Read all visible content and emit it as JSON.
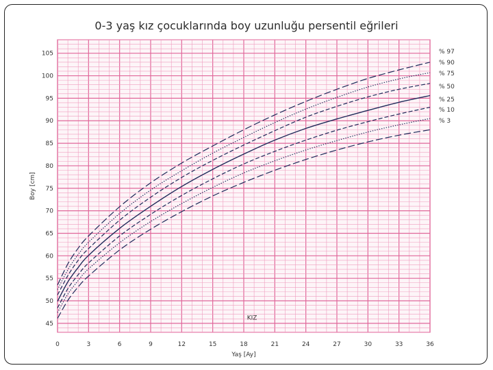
{
  "title": "0-3 yaş kız çocuklarında boy uzunluğu persentil eğrileri",
  "colors": {
    "grid": "#e0679a",
    "grid_minor": "#ef9cbe",
    "line": "#1f2a5a"
  },
  "chart_data": {
    "type": "line",
    "title": "0-3 yaş kız çocuklarında boy uzunluğu persentil eğrileri",
    "xlabel": "Yaş [Ay]",
    "ylabel": "Boy [cm]",
    "annotation": "KIZ",
    "xlim": [
      0,
      36
    ],
    "ylim": [
      43,
      108
    ],
    "xticks": [
      "0",
      "3",
      "6",
      "9",
      "12",
      "15",
      "18",
      "21",
      "24",
      "27",
      "30",
      "33",
      "36"
    ],
    "yticks": [
      "45",
      "50",
      "55",
      "60",
      "65",
      "70",
      "75",
      "80",
      "85",
      "90",
      "95",
      "100",
      "105"
    ],
    "grid": true,
    "x": [
      0,
      1,
      2,
      3,
      6,
      9,
      12,
      15,
      18,
      21,
      24,
      27,
      30,
      33,
      36
    ],
    "series": [
      {
        "name": "% 97",
        "style": "longdash",
        "values": [
          53.5,
          58.2,
          61.7,
          64.4,
          70.9,
          76.2,
          80.6,
          84.4,
          88.0,
          91.3,
          94.3,
          97.0,
          99.4,
          101.3,
          103.0
        ]
      },
      {
        "name": "% 90",
        "style": "dotted",
        "values": [
          52.5,
          56.9,
          60.3,
          63.0,
          69.4,
          74.6,
          78.9,
          82.8,
          86.3,
          89.6,
          92.6,
          95.2,
          97.5,
          99.3,
          100.7
        ]
      },
      {
        "name": "% 75",
        "style": "dashed",
        "values": [
          51.3,
          55.6,
          59.0,
          61.6,
          67.9,
          73.0,
          77.4,
          81.2,
          84.6,
          87.8,
          90.8,
          93.2,
          95.3,
          97.0,
          98.3
        ]
      },
      {
        "name": "% 50",
        "style": "solid",
        "values": [
          49.9,
          54.2,
          57.4,
          60.1,
          66.1,
          71.0,
          75.4,
          79.2,
          82.6,
          85.7,
          88.3,
          90.4,
          92.3,
          94.1,
          95.6
        ]
      },
      {
        "name": "% 25",
        "style": "dashed",
        "values": [
          48.4,
          52.7,
          55.8,
          58.4,
          64.4,
          69.2,
          73.4,
          77.1,
          80.4,
          83.2,
          85.7,
          87.9,
          89.8,
          91.5,
          93.0
        ]
      },
      {
        "name": "% 10",
        "style": "dotted",
        "values": [
          47.4,
          51.5,
          54.5,
          57.1,
          62.9,
          67.6,
          71.6,
          75.2,
          78.4,
          81.1,
          83.5,
          85.6,
          87.5,
          89.1,
          90.5
        ]
      },
      {
        "name": "% 3",
        "style": "longdash",
        "values": [
          46.1,
          50.1,
          53.1,
          55.5,
          61.3,
          65.9,
          69.8,
          73.3,
          76.3,
          79.0,
          81.4,
          83.5,
          85.3,
          86.8,
          88.0
        ]
      }
    ]
  }
}
